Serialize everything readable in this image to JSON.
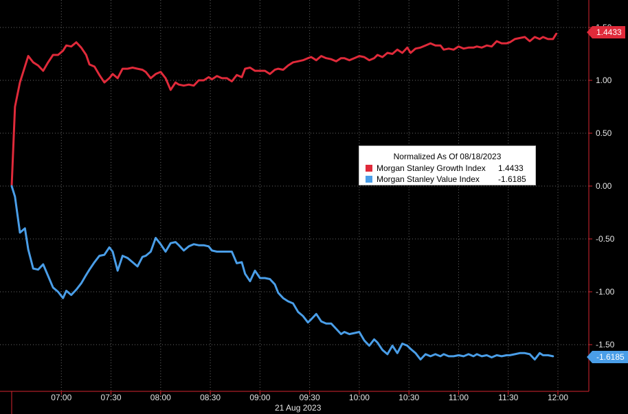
{
  "chart_data": {
    "type": "line",
    "title": "",
    "xlabel": "",
    "ylabel": "",
    "date_label": "21 Aug 2023",
    "x_ticks": [
      "07:00",
      "07:30",
      "08:00",
      "08:30",
      "09:00",
      "09:30",
      "10:00",
      "10:30",
      "11:00",
      "11:30",
      "12:00"
    ],
    "y_ticks": [
      "1.50",
      "1.00",
      "0.50",
      "0.00",
      "-0.50",
      "-1.00",
      "-1.50"
    ],
    "ylim": [
      -1.95,
      1.72
    ],
    "xlim": [
      "06:25",
      "12:16"
    ],
    "grid": true,
    "legend": {
      "title": "Normalized As Of 08/18/2023",
      "placement": "center-right",
      "entries": [
        {
          "name": "Morgan Stanley Growth Index",
          "value": "1.4433",
          "color": "#e02a3a"
        },
        {
          "name": "Morgan Stanley Value Index",
          "value": "-1.6185",
          "color": "#4a9ee8"
        }
      ]
    },
    "series": [
      {
        "name": "Morgan Stanley Growth Index",
        "color": "#e02a3a",
        "last_value_label": "1.4433",
        "points": [
          [
            "06:30",
            0.0
          ],
          [
            "06:32",
            0.75
          ],
          [
            "06:35",
            0.98
          ],
          [
            "06:40",
            1.23
          ],
          [
            "06:43",
            1.17
          ],
          [
            "06:46",
            1.14
          ],
          [
            "06:49",
            1.09
          ],
          [
            "06:52",
            1.17
          ],
          [
            "06:55",
            1.24
          ],
          [
            "06:58",
            1.24
          ],
          [
            "07:01",
            1.28
          ],
          [
            "07:03",
            1.33
          ],
          [
            "07:06",
            1.32
          ],
          [
            "07:09",
            1.36
          ],
          [
            "07:12",
            1.31
          ],
          [
            "07:15",
            1.24
          ],
          [
            "07:17",
            1.15
          ],
          [
            "07:20",
            1.13
          ],
          [
            "07:23",
            1.05
          ],
          [
            "07:26",
            0.98
          ],
          [
            "07:29",
            1.02
          ],
          [
            "07:31",
            1.06
          ],
          [
            "07:34",
            1.02
          ],
          [
            "07:37",
            1.11
          ],
          [
            "07:40",
            1.11
          ],
          [
            "07:43",
            1.12
          ],
          [
            "07:46",
            1.11
          ],
          [
            "07:49",
            1.1
          ],
          [
            "07:51",
            1.08
          ],
          [
            "07:54",
            1.02
          ],
          [
            "07:57",
            1.06
          ],
          [
            "08:00",
            1.08
          ],
          [
            "08:03",
            1.02
          ],
          [
            "08:06",
            0.91
          ],
          [
            "08:09",
            0.98
          ],
          [
            "08:11",
            0.96
          ],
          [
            "08:14",
            0.95
          ],
          [
            "08:17",
            0.96
          ],
          [
            "08:20",
            0.95
          ],
          [
            "08:23",
            1.0
          ],
          [
            "08:26",
            1.0
          ],
          [
            "08:29",
            1.03
          ],
          [
            "08:31",
            1.01
          ],
          [
            "08:34",
            1.04
          ],
          [
            "08:37",
            1.02
          ],
          [
            "08:40",
            1.02
          ],
          [
            "08:43",
            0.99
          ],
          [
            "08:46",
            1.05
          ],
          [
            "08:49",
            1.03
          ],
          [
            "08:51",
            1.11
          ],
          [
            "08:54",
            1.12
          ],
          [
            "08:57",
            1.09
          ],
          [
            "09:00",
            1.09
          ],
          [
            "09:03",
            1.09
          ],
          [
            "09:06",
            1.06
          ],
          [
            "09:09",
            1.1
          ],
          [
            "09:11",
            1.11
          ],
          [
            "09:14",
            1.1
          ],
          [
            "09:17",
            1.14
          ],
          [
            "09:20",
            1.17
          ],
          [
            "09:23",
            1.18
          ],
          [
            "09:26",
            1.19
          ],
          [
            "09:29",
            1.21
          ],
          [
            "09:31",
            1.22
          ],
          [
            "09:34",
            1.19
          ],
          [
            "09:37",
            1.23
          ],
          [
            "09:40",
            1.21
          ],
          [
            "09:43",
            1.2
          ],
          [
            "09:46",
            1.18
          ],
          [
            "09:49",
            1.21
          ],
          [
            "09:51",
            1.21
          ],
          [
            "09:54",
            1.19
          ],
          [
            "09:57",
            1.21
          ],
          [
            "10:00",
            1.23
          ],
          [
            "10:03",
            1.22
          ],
          [
            "10:06",
            1.19
          ],
          [
            "10:09",
            1.21
          ],
          [
            "10:11",
            1.24
          ],
          [
            "10:14",
            1.22
          ],
          [
            "10:17",
            1.26
          ],
          [
            "10:20",
            1.25
          ],
          [
            "10:23",
            1.29
          ],
          [
            "10:26",
            1.26
          ],
          [
            "10:29",
            1.31
          ],
          [
            "10:31",
            1.26
          ],
          [
            "10:34",
            1.3
          ],
          [
            "10:37",
            1.31
          ],
          [
            "10:40",
            1.33
          ],
          [
            "10:43",
            1.35
          ],
          [
            "10:46",
            1.33
          ],
          [
            "10:49",
            1.33
          ],
          [
            "10:51",
            1.29
          ],
          [
            "10:54",
            1.3
          ],
          [
            "10:57",
            1.29
          ],
          [
            "11:00",
            1.32
          ],
          [
            "11:03",
            1.3
          ],
          [
            "11:06",
            1.31
          ],
          [
            "11:09",
            1.31
          ],
          [
            "11:11",
            1.32
          ],
          [
            "11:14",
            1.31
          ],
          [
            "11:17",
            1.33
          ],
          [
            "11:20",
            1.32
          ],
          [
            "11:23",
            1.37
          ],
          [
            "11:26",
            1.35
          ],
          [
            "11:29",
            1.35
          ],
          [
            "11:31",
            1.36
          ],
          [
            "11:34",
            1.39
          ],
          [
            "11:37",
            1.4
          ],
          [
            "11:40",
            1.41
          ],
          [
            "11:43",
            1.37
          ],
          [
            "11:46",
            1.41
          ],
          [
            "11:49",
            1.39
          ],
          [
            "11:51",
            1.41
          ],
          [
            "11:54",
            1.39
          ],
          [
            "11:57",
            1.39
          ],
          [
            "11:59",
            1.44
          ]
        ]
      },
      {
        "name": "Morgan Stanley Value Index",
        "color": "#4a9ee8",
        "last_value_label": "-1.6185",
        "points": [
          [
            "06:30",
            0.0
          ],
          [
            "06:32",
            -0.1
          ],
          [
            "06:35",
            -0.44
          ],
          [
            "06:38",
            -0.4
          ],
          [
            "06:40",
            -0.6
          ],
          [
            "06:43",
            -0.78
          ],
          [
            "06:46",
            -0.79
          ],
          [
            "06:49",
            -0.74
          ],
          [
            "06:52",
            -0.85
          ],
          [
            "06:55",
            -0.96
          ],
          [
            "06:58",
            -1.0
          ],
          [
            "07:01",
            -1.06
          ],
          [
            "07:03",
            -0.99
          ],
          [
            "07:06",
            -1.03
          ],
          [
            "07:09",
            -0.98
          ],
          [
            "07:12",
            -0.92
          ],
          [
            "07:15",
            -0.84
          ],
          [
            "07:17",
            -0.79
          ],
          [
            "07:20",
            -0.72
          ],
          [
            "07:23",
            -0.66
          ],
          [
            "07:26",
            -0.65
          ],
          [
            "07:29",
            -0.58
          ],
          [
            "07:31",
            -0.62
          ],
          [
            "07:34",
            -0.8
          ],
          [
            "07:37",
            -0.66
          ],
          [
            "07:40",
            -0.68
          ],
          [
            "07:43",
            -0.72
          ],
          [
            "07:46",
            -0.76
          ],
          [
            "07:49",
            -0.67
          ],
          [
            "07:51",
            -0.66
          ],
          [
            "07:54",
            -0.62
          ],
          [
            "07:57",
            -0.49
          ],
          [
            "08:00",
            -0.55
          ],
          [
            "08:03",
            -0.62
          ],
          [
            "08:06",
            -0.54
          ],
          [
            "08:09",
            -0.53
          ],
          [
            "08:11",
            -0.56
          ],
          [
            "08:14",
            -0.61
          ],
          [
            "08:17",
            -0.57
          ],
          [
            "08:20",
            -0.55
          ],
          [
            "08:23",
            -0.56
          ],
          [
            "08:26",
            -0.56
          ],
          [
            "08:29",
            -0.57
          ],
          [
            "08:31",
            -0.61
          ],
          [
            "08:34",
            -0.62
          ],
          [
            "08:37",
            -0.62
          ],
          [
            "08:40",
            -0.62
          ],
          [
            "08:43",
            -0.62
          ],
          [
            "08:46",
            -0.73
          ],
          [
            "08:49",
            -0.72
          ],
          [
            "08:51",
            -0.83
          ],
          [
            "08:54",
            -0.9
          ],
          [
            "08:57",
            -0.8
          ],
          [
            "09:00",
            -0.87
          ],
          [
            "09:03",
            -0.87
          ],
          [
            "09:06",
            -0.88
          ],
          [
            "09:09",
            -0.93
          ],
          [
            "09:11",
            -1.01
          ],
          [
            "09:14",
            -1.06
          ],
          [
            "09:17",
            -1.09
          ],
          [
            "09:20",
            -1.11
          ],
          [
            "09:23",
            -1.19
          ],
          [
            "09:26",
            -1.23
          ],
          [
            "09:29",
            -1.29
          ],
          [
            "09:31",
            -1.26
          ],
          [
            "09:34",
            -1.21
          ],
          [
            "09:37",
            -1.28
          ],
          [
            "09:40",
            -1.3
          ],
          [
            "09:43",
            -1.3
          ],
          [
            "09:46",
            -1.35
          ],
          [
            "09:49",
            -1.4
          ],
          [
            "09:51",
            -1.38
          ],
          [
            "09:54",
            -1.4
          ],
          [
            "09:57",
            -1.39
          ],
          [
            "10:00",
            -1.38
          ],
          [
            "10:03",
            -1.46
          ],
          [
            "10:06",
            -1.51
          ],
          [
            "10:09",
            -1.45
          ],
          [
            "10:11",
            -1.48
          ],
          [
            "10:14",
            -1.55
          ],
          [
            "10:17",
            -1.59
          ],
          [
            "10:20",
            -1.51
          ],
          [
            "10:23",
            -1.58
          ],
          [
            "10:26",
            -1.49
          ],
          [
            "10:29",
            -1.51
          ],
          [
            "10:31",
            -1.54
          ],
          [
            "10:34",
            -1.58
          ],
          [
            "10:37",
            -1.64
          ],
          [
            "10:40",
            -1.59
          ],
          [
            "10:43",
            -1.61
          ],
          [
            "10:46",
            -1.59
          ],
          [
            "10:49",
            -1.61
          ],
          [
            "10:51",
            -1.59
          ],
          [
            "10:54",
            -1.61
          ],
          [
            "10:57",
            -1.61
          ],
          [
            "11:00",
            -1.6
          ],
          [
            "11:03",
            -1.61
          ],
          [
            "11:06",
            -1.59
          ],
          [
            "11:09",
            -1.61
          ],
          [
            "11:11",
            -1.59
          ],
          [
            "11:14",
            -1.61
          ],
          [
            "11:17",
            -1.6
          ],
          [
            "11:20",
            -1.62
          ],
          [
            "11:23",
            -1.6
          ],
          [
            "11:26",
            -1.61
          ],
          [
            "11:29",
            -1.6
          ],
          [
            "11:31",
            -1.6
          ],
          [
            "11:34",
            -1.59
          ],
          [
            "11:37",
            -1.58
          ],
          [
            "11:40",
            -1.58
          ],
          [
            "11:43",
            -1.59
          ],
          [
            "11:46",
            -1.64
          ],
          [
            "11:49",
            -1.58
          ],
          [
            "11:51",
            -1.6
          ],
          [
            "11:54",
            -1.6
          ],
          [
            "11:57",
            -1.61
          ]
        ]
      }
    ]
  }
}
